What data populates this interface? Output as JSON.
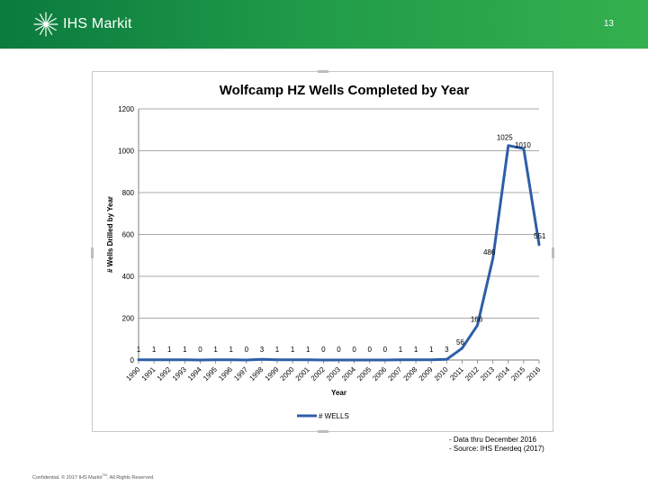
{
  "header": {
    "brand": "IHS Markit",
    "page_number": "13",
    "logo_icon": "ihs-markit-starburst-icon"
  },
  "notes": [
    "- Data thru December 2016",
    "- Source: IHS Enerdeq (2017)"
  ],
  "footer": {
    "text_before": "Confidential. © 2017 IHS Markit",
    "tm": "TM",
    "text_after": ". All Rights Reserved."
  },
  "colors": {
    "banner_start": "#0b7a3e",
    "banner_end": "#35b04e",
    "series_line": "#2e5ea8"
  },
  "chart_data": {
    "type": "line",
    "title": "Wolfcamp HZ Wells Completed by Year",
    "xlabel": "Year",
    "ylabel": "# Wells Drilled by Year",
    "ylim": [
      0,
      1200
    ],
    "yticks": [
      0,
      200,
      400,
      600,
      800,
      1000,
      1200
    ],
    "grid": true,
    "legend_position": "bottom",
    "categories": [
      "1990",
      "1991",
      "1992",
      "1993",
      "1994",
      "1995",
      "1996",
      "1997",
      "1998",
      "1999",
      "2000",
      "2001",
      "2002",
      "2003",
      "2004",
      "2005",
      "2006",
      "2007",
      "2008",
      "2009",
      "2010",
      "2011",
      "2012",
      "2013",
      "2014",
      "2015",
      "2016"
    ],
    "series": [
      {
        "name": "# WELLS",
        "values": [
          1,
          1,
          1,
          1,
          0,
          1,
          1,
          0,
          3,
          1,
          1,
          1,
          0,
          0,
          0,
          0,
          0,
          1,
          1,
          1,
          3,
          56,
          166,
          486,
          1025,
          1010,
          551
        ]
      }
    ]
  }
}
